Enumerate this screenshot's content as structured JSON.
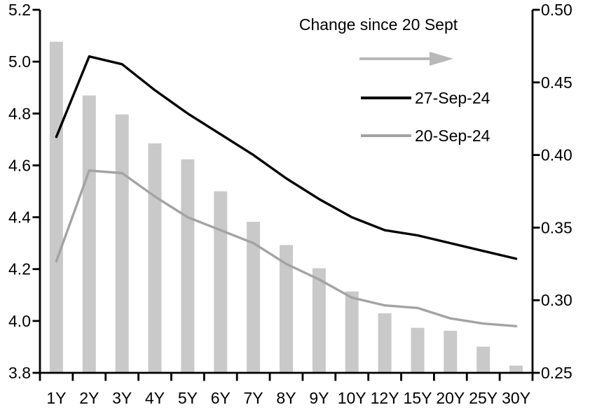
{
  "chart_data": {
    "type": "combo-bar-line",
    "title": "",
    "categories": [
      "1Y",
      "2Y",
      "3Y",
      "4Y",
      "5Y",
      "6Y",
      "7Y",
      "8Y",
      "9Y",
      "10Y",
      "12Y",
      "15Y",
      "20Y",
      "25Y",
      "30Y"
    ],
    "series": [
      {
        "name": "Change since 20 Sept",
        "type": "bar",
        "axis": "right",
        "color": "#c9c9c9",
        "values": [
          0.478,
          0.441,
          0.428,
          0.408,
          0.397,
          0.375,
          0.354,
          0.338,
          0.322,
          0.306,
          0.291,
          0.281,
          0.279,
          0.268,
          0.255
        ]
      },
      {
        "name": "27-Sep-24",
        "type": "line",
        "axis": "left",
        "color": "#000000",
        "values": [
          4.71,
          5.02,
          4.99,
          4.89,
          4.8,
          4.72,
          4.64,
          4.55,
          4.47,
          4.4,
          4.35,
          4.33,
          4.3,
          4.27,
          4.24
        ]
      },
      {
        "name": "20-Sep-24",
        "type": "line",
        "axis": "left",
        "color": "#a3a3a3",
        "values": [
          4.23,
          4.58,
          4.57,
          4.48,
          4.4,
          4.35,
          4.3,
          4.22,
          4.16,
          4.09,
          4.06,
          4.05,
          4.01,
          3.99,
          3.98
        ]
      }
    ],
    "left_axis": {
      "min": 3.8,
      "max": 5.2,
      "ticks": [
        "5.2",
        "5.0",
        "4.8",
        "4.6",
        "4.4",
        "4.2",
        "4.0",
        "3.8"
      ]
    },
    "right_axis": {
      "min": 0.25,
      "max": 0.5,
      "ticks": [
        "0.50",
        "0.45",
        "0.40",
        "0.35",
        "0.30",
        "0.25"
      ]
    },
    "grid": false,
    "legend": {
      "position": "top-right-inside",
      "title": "Change since 20 Sept",
      "arrow_color": "#b8b8b8",
      "items": [
        {
          "label": "27-Sep-24",
          "color": "#000000"
        },
        {
          "label": "20-Sep-24",
          "color": "#a3a3a3"
        }
      ]
    }
  }
}
